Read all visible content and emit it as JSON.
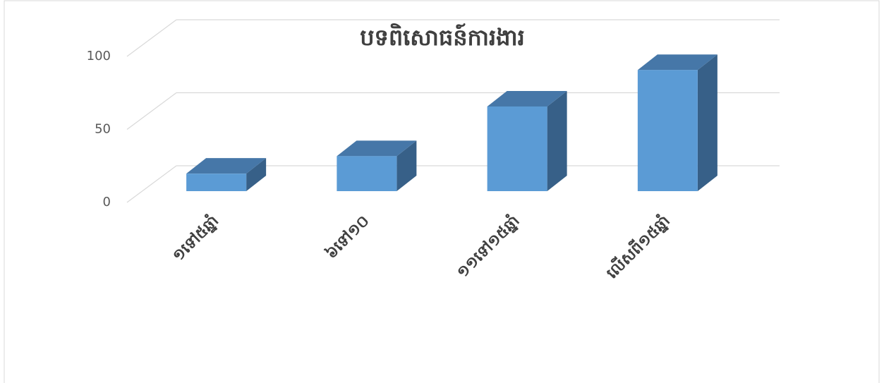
{
  "chart_data": {
    "type": "bar3d",
    "title": "បទពិសោធន៍ការងារ",
    "categories": [
      "១ទៅ៥ឆ្នាំ",
      "៦ទៅ១០",
      "១១ទៅ១៥ឆ្នាំ",
      "លើសពី១៥ឆ្នាំ"
    ],
    "values": [
      12,
      24,
      58,
      83
    ],
    "color": "#5b9bd5",
    "ylim": [
      0,
      100
    ],
    "yticks": [
      0,
      50,
      100
    ],
    "grid": true
  }
}
